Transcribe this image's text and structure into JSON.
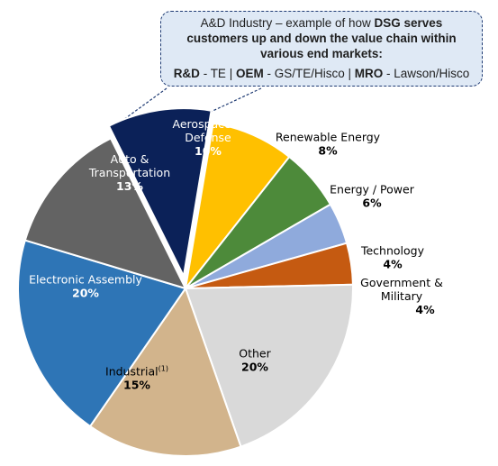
{
  "callout": {
    "line1_pre": "A&D Industry – example of how ",
    "line1_bold": "DSG serves",
    "line2": "customers up and down the value chain within",
    "line3": "various end markets:",
    "rd_label": "R&D",
    "rd_value": " - TE | ",
    "oem_label": "OEM",
    "oem_value": " - GS/TE/Hisco | ",
    "mro_label": "MRO",
    "mro_value": " - Lawson/Hisco"
  },
  "chart_data": {
    "type": "pie",
    "title": "",
    "start_category": "Aerospace & Defense",
    "exploded_category": "Aerospace & Defense",
    "slices": [
      {
        "label": "Aerospace & Defense",
        "value": 10,
        "value_label": "10%",
        "color": "#0b2158",
        "label_color": "#ffffff"
      },
      {
        "label": "Renewable Energy",
        "value": 8,
        "value_label": "8%",
        "color": "#ffc000",
        "label_color": "#000000"
      },
      {
        "label": "Energy / Power",
        "value": 6,
        "value_label": "6%",
        "color": "#4d8a3a",
        "label_color": "#000000"
      },
      {
        "label": "Technology",
        "value": 4,
        "value_label": "4%",
        "color": "#8faadc",
        "label_color": "#000000"
      },
      {
        "label": "Government & Military",
        "value": 4,
        "value_label": "4%",
        "color": "#c55a11",
        "label_color": "#000000"
      },
      {
        "label": "Other",
        "value": 20,
        "value_label": "20%",
        "color": "#d9d9d9",
        "label_color": "#000000"
      },
      {
        "label": "Industrial",
        "label_superscript": "(1)",
        "value": 15,
        "value_label": "15%",
        "color": "#d2b48c",
        "label_color": "#000000"
      },
      {
        "label": "Electronic Assembly",
        "value": 20,
        "value_label": "20%",
        "color": "#2e75b6",
        "label_color": "#ffffff"
      },
      {
        "label": "Auto & Transportation",
        "value": 13,
        "value_label": "13%",
        "color": "#636363",
        "label_color": "#ffffff"
      }
    ]
  }
}
